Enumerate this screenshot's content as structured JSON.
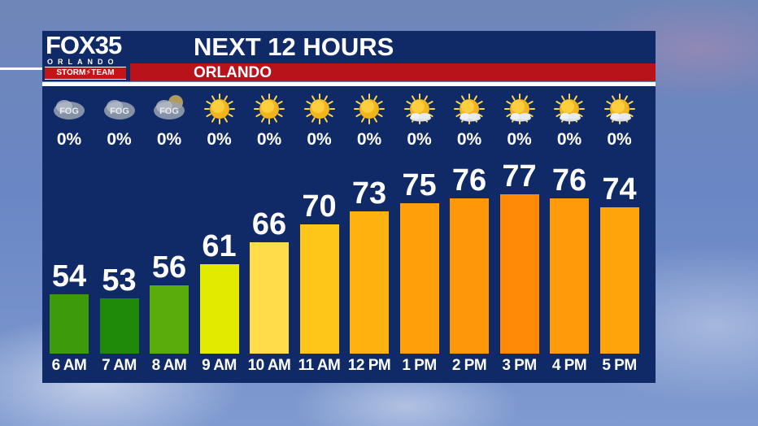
{
  "branding": {
    "logo_text": "FOX35",
    "city": "ORLANDO",
    "team": "STORM⚡TEAM"
  },
  "header": {
    "title": "NEXT 12 HOURS",
    "location": "ORLANDO"
  },
  "icons": {
    "fog": {
      "name": "fog-icon",
      "label": "FOG"
    },
    "sunny": {
      "name": "sunny-icon"
    },
    "partly-sunny": {
      "name": "partly-sunny-icon"
    }
  },
  "chart_data": {
    "type": "bar",
    "categories": [
      "6 AM",
      "7 AM",
      "8 AM",
      "9 AM",
      "10 AM",
      "11 AM",
      "12 PM",
      "1 PM",
      "2 PM",
      "3 PM",
      "4 PM",
      "5 PM"
    ],
    "values": [
      54,
      53,
      56,
      61,
      66,
      70,
      73,
      75,
      76,
      77,
      76,
      74
    ],
    "precip": [
      "0%",
      "0%",
      "0%",
      "0%",
      "0%",
      "0%",
      "0%",
      "0%",
      "0%",
      "0%",
      "0%",
      "0%"
    ],
    "conditions": [
      "fog",
      "fog",
      "fog",
      "sunny",
      "sunny",
      "sunny",
      "sunny",
      "partly-sunny",
      "partly-sunny",
      "partly-sunny",
      "partly-sunny",
      "partly-sunny"
    ],
    "bar_colors": [
      "#3d9a0b",
      "#1f8a0a",
      "#5aab0c",
      "#e2ea00",
      "#ffdc4a",
      "#ffc61a",
      "#ffb10f",
      "#ff9f0a",
      "#ff970a",
      "#ff8a05",
      "#ff9a0a",
      "#ffa40a"
    ],
    "title": "NEXT 12 HOURS",
    "xlabel": "",
    "ylabel": ""
  }
}
